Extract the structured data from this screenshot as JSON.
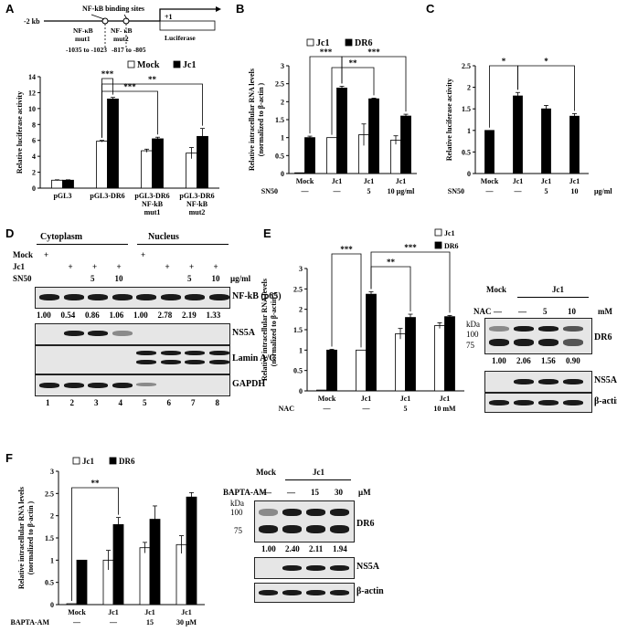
{
  "panels": {
    "A": "A",
    "B": "B",
    "C": "C",
    "D": "D",
    "E": "E",
    "F": "F"
  },
  "schematic": {
    "title": "NF-kB binding sites",
    "start": "-2 kb",
    "tss": "+1",
    "mut1_name": "NF-κB mut1",
    "mut1_l1": "NF-κB",
    "mut1_l2": "mut1",
    "mut1_range": "-1035 to -1023",
    "mut2_l1": "NF- κB",
    "mut2_l2": "mut2",
    "mut2_range": "-817 to -805",
    "reporter": "Luciferase"
  },
  "colors": {
    "mock": "#ffffff",
    "jc1": "#000000",
    "dr6": "#000000"
  },
  "chart_data": [
    {
      "panel": "A",
      "type": "bar",
      "ylabel": "Relative luciferase activity",
      "ylim": [
        0,
        14
      ],
      "yticks": [
        "0",
        "2",
        "4",
        "6",
        "8",
        "10",
        "12",
        "14"
      ],
      "categories": [
        "pGL3",
        "pGL3-DR6",
        "pGL3-DR6 NF-kB mut1",
        "pGL3-DR6 NF-kB mut2"
      ],
      "category_lines": [
        [
          "pGL3"
        ],
        [
          "pGL3-DR6"
        ],
        [
          "pGL3-DR6",
          "NF-kB",
          "mut1"
        ],
        [
          "pGL3-DR6",
          "NF-kB",
          "mut2"
        ]
      ],
      "series": [
        {
          "name": "Mock",
          "values": [
            1.0,
            5.9,
            4.7,
            4.4
          ],
          "errors": [
            0.05,
            0.1,
            0.2,
            0.7
          ]
        },
        {
          "name": "Jc1",
          "values": [
            1.0,
            11.2,
            6.2,
            6.5
          ],
          "errors": [
            0.05,
            0.2,
            0.2,
            1.0
          ]
        }
      ],
      "significance": [
        "***",
        "***",
        "**"
      ]
    },
    {
      "panel": "B",
      "type": "bar",
      "ylabel": "Relative intracellular RNA levels (normalized to β-actin )",
      "ylabel_l1": "Relative intracellular RNA levels",
      "ylabel_l2": "(normalized to β-actin )",
      "ylim": [
        0,
        3
      ],
      "yticks": [
        "0",
        "0.5",
        "1",
        "1.5",
        "2",
        "2.5",
        "3"
      ],
      "categories": [
        "Mock",
        "Jc1",
        "Jc1",
        "Jc1"
      ],
      "treatment_label": "SN50",
      "treatments": [
        "—",
        "—",
        "5",
        "10 μg/ml"
      ],
      "series": [
        {
          "name": "Jc1",
          "values": [
            0.02,
            1.0,
            1.08,
            0.93
          ],
          "errors": [
            0.0,
            0.0,
            0.3,
            0.12
          ]
        },
        {
          "name": "DR6",
          "values": [
            1.0,
            2.38,
            2.08,
            1.6
          ],
          "errors": [
            0.04,
            0.05,
            0.02,
            0.05
          ]
        }
      ],
      "significance": [
        "***",
        "**",
        "***"
      ]
    },
    {
      "panel": "C",
      "type": "bar",
      "ylabel": "Relative luciferase activity",
      "ylim": [
        0,
        2.5
      ],
      "yticks": [
        "0",
        "0.5",
        "1",
        "1.5",
        "2",
        "2.5"
      ],
      "categories": [
        "Mock",
        "Jc1",
        "Jc1",
        "Jc1"
      ],
      "treatment_label": "SN50",
      "treatments": [
        "—",
        "—",
        "5",
        "10"
      ],
      "treatment_unit": "μg/ml",
      "series": [
        {
          "name": "",
          "values": [
            1.0,
            1.8,
            1.5,
            1.33
          ],
          "errors": [
            0.0,
            0.08,
            0.08,
            0.06
          ]
        }
      ],
      "significance": [
        "*",
        "*"
      ]
    },
    {
      "panel": "E",
      "type": "bar",
      "ylabel": "Relative intracellular RNA levels (normalized to β-actin )",
      "ylabel_l1": "Relative intracellular RNA levels",
      "ylabel_l2": "(normalized to β-actin )",
      "ylim": [
        0,
        3
      ],
      "yticks": [
        "0",
        "0.5",
        "1",
        "1.5",
        "2",
        "2.5",
        "3"
      ],
      "categories": [
        "Mock",
        "Jc1",
        "Jc1",
        "Jc1"
      ],
      "treatment_label": "NAC",
      "treatments": [
        "—",
        "—",
        "5",
        "10 mM"
      ],
      "series": [
        {
          "name": "Jc1",
          "values": [
            0.02,
            1.0,
            1.4,
            1.6
          ],
          "errors": [
            0.0,
            0.0,
            0.13,
            0.07
          ]
        },
        {
          "name": "DR6",
          "values": [
            1.0,
            2.37,
            1.8,
            1.82
          ],
          "errors": [
            0.02,
            0.06,
            0.08,
            0.03
          ]
        }
      ],
      "significance": [
        "***",
        "**",
        "***"
      ]
    },
    {
      "panel": "F",
      "type": "bar",
      "ylabel": "Relative intracellular RNA levels (normalized to β-actin )",
      "ylabel_l1": "Relative intracellular RNA levels",
      "ylabel_l2": "(normalized to β-actin )",
      "ylim": [
        0,
        3
      ],
      "yticks": [
        "0",
        "0.5",
        "1",
        "1.5",
        "2",
        "2.5",
        "3"
      ],
      "categories": [
        "Mock",
        "Jc1",
        "Jc1",
        "Jc1"
      ],
      "treatment_label": "BAPTA-AM",
      "treatments": [
        "—",
        "—",
        "15",
        "30 μM"
      ],
      "series": [
        {
          "name": "Jc1",
          "values": [
            0.02,
            1.0,
            1.28,
            1.35
          ],
          "errors": [
            0.0,
            0.22,
            0.12,
            0.2
          ]
        },
        {
          "name": "DR6",
          "values": [
            1.0,
            1.8,
            1.92,
            2.42
          ],
          "errors": [
            0.0,
            0.16,
            0.3,
            0.1
          ]
        }
      ],
      "significance": [
        "**"
      ]
    }
  ],
  "blotD": {
    "cytoplasm": "Cytoplasm",
    "nucleus": "Nucleus",
    "row_mock": "Mock",
    "row_jc1": "Jc1",
    "row_sn50": "SN50",
    "unit": "μg/ml",
    "mock_marks": [
      "+",
      "",
      "",
      "",
      "+",
      "",
      "",
      ""
    ],
    "jc1_marks": [
      "",
      "+",
      "+",
      "+",
      "",
      "+",
      "+",
      "+"
    ],
    "sn50_marks": [
      "",
      "",
      "5",
      "10",
      "",
      "",
      "5",
      "10"
    ],
    "quant": [
      "1.00",
      "0.54",
      "0.86",
      "1.06",
      "1.00",
      "2.78",
      "2.19",
      "1.33"
    ],
    "proteins": [
      "NF-kB (p65)",
      "NS5A",
      "Lamin A/C",
      "GAPDH"
    ],
    "lanes": [
      "1",
      "2",
      "3",
      "4",
      "5",
      "6",
      "7",
      "8"
    ]
  },
  "blotE": {
    "mock": "Mock",
    "jc1": "Jc1",
    "treatment": "NAC",
    "doses": [
      "—",
      "—",
      "5",
      "10"
    ],
    "unit": "mM",
    "kda": "kDa",
    "m100": "100",
    "m75": "75",
    "quant": [
      "1.00",
      "2.06",
      "1.56",
      "0.90"
    ],
    "proteins": [
      "DR6",
      "NS5A",
      "β-actin"
    ]
  },
  "blotF": {
    "mock": "Mock",
    "jc1": "Jc1",
    "treatment": "BAPTA-AM",
    "doses": [
      "—",
      "—",
      "15",
      "30"
    ],
    "unit": "μM",
    "kda": "kDa",
    "m100": "100",
    "m75": "75",
    "quant": [
      "1.00",
      "2.40",
      "2.11",
      "1.94"
    ],
    "proteins": [
      "DR6",
      "NS5A",
      "β-actin"
    ]
  }
}
